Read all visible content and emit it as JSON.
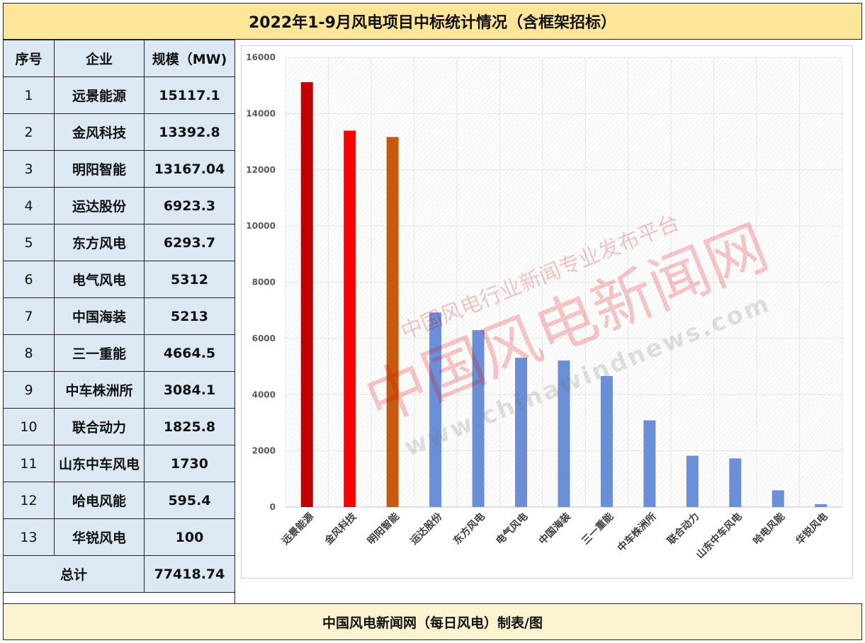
{
  "title": "2022年1-9月风电项目中标统计情况（含框架招标）",
  "footer": "中国风电新闻网（每日风电）制表/图",
  "table": {
    "headers": [
      "序号",
      "企业",
      "规模（MW)"
    ],
    "rows": [
      {
        "rank": "1",
        "company": "远景能源",
        "value": "15117.1"
      },
      {
        "rank": "2",
        "company": "金风科技",
        "value": "13392.8"
      },
      {
        "rank": "3",
        "company": "明阳智能",
        "value": "13167.04"
      },
      {
        "rank": "4",
        "company": "运达股份",
        "value": "6923.3"
      },
      {
        "rank": "5",
        "company": "东方风电",
        "value": "6293.7"
      },
      {
        "rank": "6",
        "company": "电气风电",
        "value": "5312"
      },
      {
        "rank": "7",
        "company": "中国海装",
        "value": "5213"
      },
      {
        "rank": "8",
        "company": "三一重能",
        "value": "4664.5"
      },
      {
        "rank": "9",
        "company": "中车株洲所",
        "value": "3084.1"
      },
      {
        "rank": "10",
        "company": "联合动力",
        "value": "1825.8"
      },
      {
        "rank": "11",
        "company": "山东中车风电",
        "value": "1730"
      },
      {
        "rank": "12",
        "company": "哈电风能",
        "value": "595.4"
      },
      {
        "rank": "13",
        "company": "华锐风电",
        "value": "100"
      }
    ],
    "total_label": "总计",
    "total_value": "77418.74"
  },
  "watermark": {
    "line1": "中国风电行业新闻专业发布平台",
    "line2": "中国风电新闻网",
    "line3": "www.chinawindnews.com"
  },
  "chart_data": {
    "type": "bar",
    "categories": [
      "远景能源",
      "金风科技",
      "明阳智能",
      "运达股份",
      "东方风电",
      "电气风电",
      "中国海装",
      "三一重能",
      "中车株洲所",
      "联合动力",
      "山东中车风电",
      "哈电风能",
      "华锐风电"
    ],
    "values": [
      15117.1,
      13392.8,
      13167.04,
      6923.3,
      6293.7,
      5312,
      5213,
      4664.5,
      3084.1,
      1825.8,
      1730,
      595.4,
      100
    ],
    "colors": [
      "#c00000",
      "#ff0000",
      "#c55a11",
      "#6a8fd6",
      "#6a8fd6",
      "#6a8fd6",
      "#6a8fd6",
      "#6a8fd6",
      "#6a8fd6",
      "#6a8fd6",
      "#6a8fd6",
      "#6a8fd6",
      "#6a8fd6"
    ],
    "ylim": [
      0,
      16000
    ],
    "yticks": [
      0,
      2000,
      4000,
      6000,
      8000,
      10000,
      12000,
      14000,
      16000
    ],
    "grid": true,
    "title": "",
    "xlabel": "",
    "ylabel": ""
  }
}
